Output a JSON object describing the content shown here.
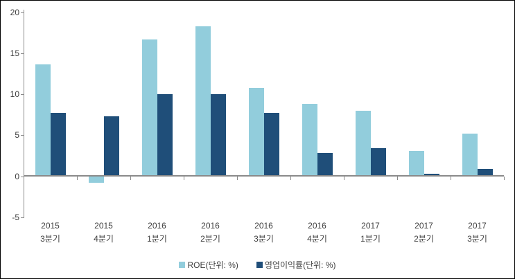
{
  "chart": {
    "background": "#FFFFFF",
    "border_color": "#000000",
    "axis_color": "#8A8A8A",
    "label_color": "#3F3F3F"
  },
  "chart_data": {
    "type": "bar",
    "title": "",
    "xlabel": "",
    "ylabel": "",
    "categories": [
      [
        "2015",
        "3분기"
      ],
      [
        "2015",
        "4분기"
      ],
      [
        "2016",
        "1분기"
      ],
      [
        "2016",
        "2분기"
      ],
      [
        "2016",
        "3분기"
      ],
      [
        "2016",
        "4분기"
      ],
      [
        "2017",
        "1분기"
      ],
      [
        "2017",
        "2분기"
      ],
      [
        "2017",
        "3분기"
      ]
    ],
    "series": [
      {
        "name": "ROE(단위: %)",
        "color": "#92CDDC",
        "values": [
          13.6,
          -0.8,
          16.7,
          18.3,
          10.8,
          8.8,
          8.0,
          3.1,
          5.2
        ]
      },
      {
        "name": "영업이익률(단위: %)",
        "color": "#1F4E79",
        "values": [
          7.7,
          7.3,
          10.0,
          10.0,
          7.7,
          2.8,
          3.4,
          0.3,
          0.9
        ]
      }
    ],
    "ylim": [
      -5,
      20
    ],
    "yticks": [
      20,
      15,
      10,
      5,
      0,
      -5
    ],
    "grid": false,
    "legend_position": "bottom"
  }
}
